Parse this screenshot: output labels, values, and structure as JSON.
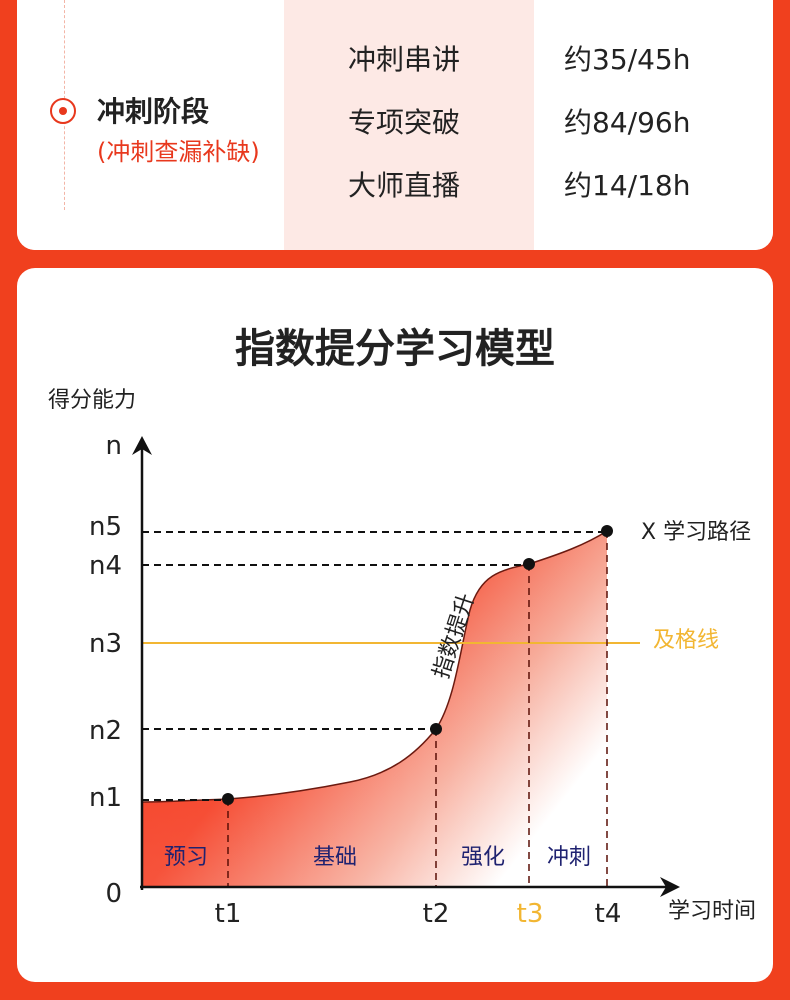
{
  "stage": {
    "title": "冲刺阶段",
    "subtitle": "(冲刺查漏补缺)",
    "rows": [
      {
        "name": "冲刺串讲",
        "hours": "约35/45h"
      },
      {
        "name": "专项突破",
        "hours": "约84/96h"
      },
      {
        "name": "大师直播",
        "hours": "约14/18h"
      }
    ]
  },
  "model": {
    "title": "指数提分学习模型",
    "y_axis_label": "得分能力",
    "x_axis_label": "学习时间",
    "y_ticks": [
      "n",
      "n5",
      "n4",
      "n3",
      "n2",
      "n1",
      "0"
    ],
    "x_ticks": [
      "t1",
      "t2",
      "t3",
      "t4"
    ],
    "phases": [
      "预习",
      "基础",
      "强化",
      "冲刺"
    ],
    "curve_annotation": "指数提升",
    "path_label": "X 学习路径",
    "pass_line_label": "及格线"
  },
  "colors": {
    "accent": "#e8381d",
    "background": "#f0401e",
    "pass_line": "#f2b632",
    "phase_text": "#1f2270",
    "t3_label": "#f2b632"
  }
}
